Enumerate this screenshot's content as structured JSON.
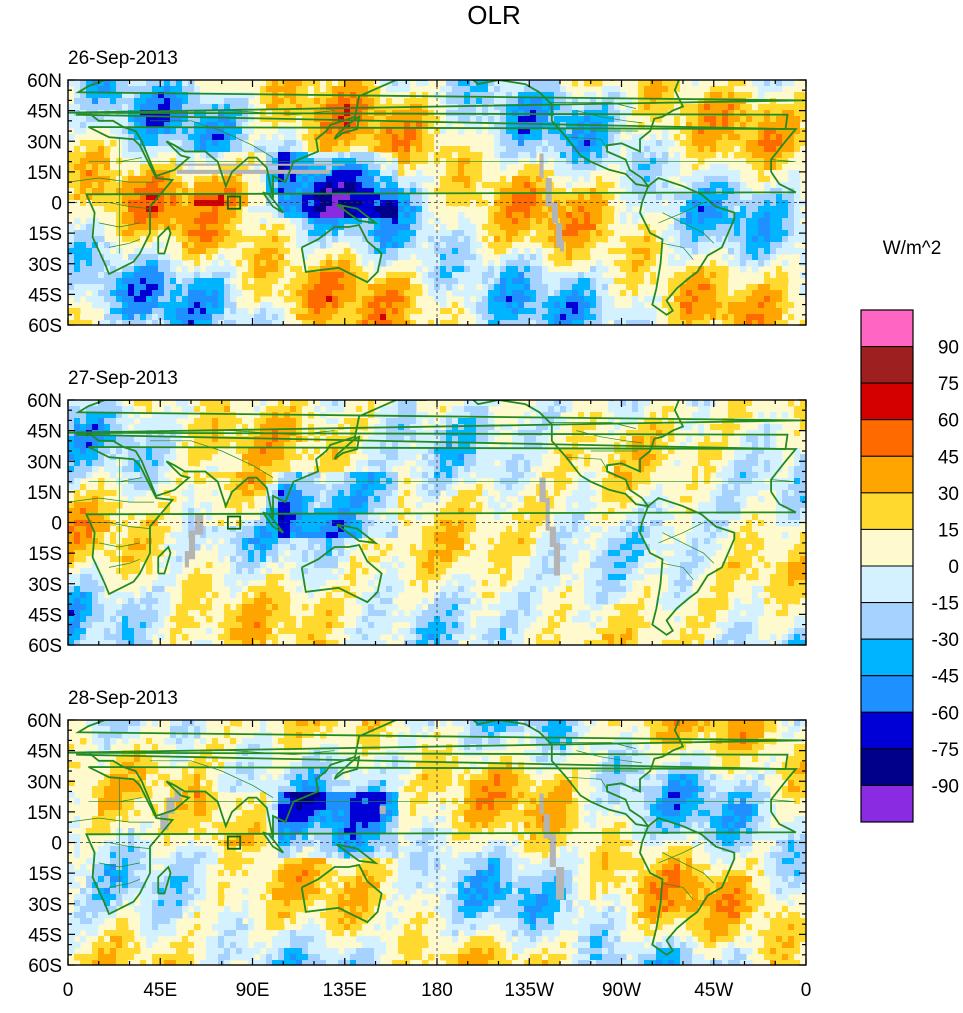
{
  "title": "OLR",
  "panels": [
    {
      "date": "26-Sep-2013"
    },
    {
      "date": "27-Sep-2013"
    },
    {
      "date": "28-Sep-2013"
    }
  ],
  "lat_labels": [
    "60N",
    "45N",
    "30N",
    "15N",
    "0",
    "15S",
    "30S",
    "45S",
    "60S"
  ],
  "lon_labels": [
    "0",
    "45E",
    "90E",
    "135E",
    "180",
    "135W",
    "90W",
    "45W",
    "0"
  ],
  "colorbar": {
    "units": "W/m^2",
    "labels": [
      "90",
      "75",
      "60",
      "45",
      "30",
      "15",
      "0",
      "-15",
      "-30",
      "-45",
      "-60",
      "-75",
      "-90"
    ],
    "colors": [
      "#ff66c4",
      "#9e1f1f",
      "#d40000",
      "#ff6a00",
      "#ffa500",
      "#ffd92e",
      "#fffacd",
      "#d4f1ff",
      "#a6d2ff",
      "#00b4ff",
      "#1e90ff",
      "#0000d6",
      "#00008b",
      "#8a2be2"
    ]
  },
  "colors": {
    "coast": "#228b22",
    "missing": "#b4b4b4"
  }
}
